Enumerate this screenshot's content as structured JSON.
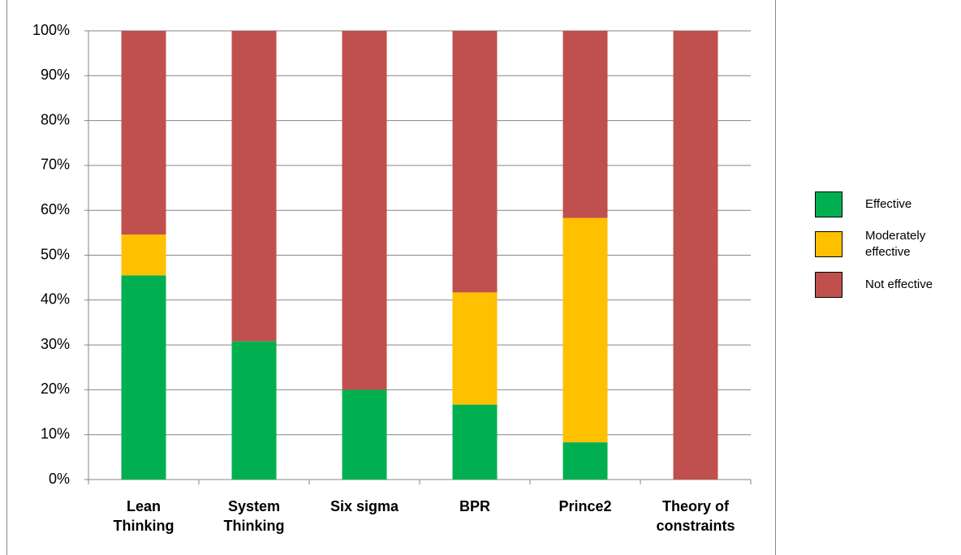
{
  "chart_data": {
    "type": "stacked_bar_100",
    "categories": [
      "Lean Thinking",
      "System Thinking",
      "Six sigma",
      "BPR",
      "Prince2",
      "Theory of constraints"
    ],
    "series": [
      {
        "name": "Effective",
        "color": "#00b050",
        "values": [
          45.5,
          30.8,
          20,
          16.7,
          8.3,
          0
        ]
      },
      {
        "name": "Moderately effective",
        "color": "#ffc000",
        "values": [
          9.1,
          0,
          0,
          25,
          50,
          0
        ]
      },
      {
        "name": "Not effective",
        "color": "#c0504d",
        "values": [
          45.4,
          69.2,
          80,
          58.3,
          41.7,
          100
        ]
      }
    ],
    "ylim": [
      0,
      100
    ],
    "yticks": [
      {
        "value": 0,
        "label": "0%"
      },
      {
        "value": 10,
        "label": "10%"
      },
      {
        "value": 20,
        "label": "20%"
      },
      {
        "value": 30,
        "label": "30%"
      },
      {
        "value": 40,
        "label": "40%"
      },
      {
        "value": 50,
        "label": "50%"
      },
      {
        "value": 60,
        "label": "60%"
      },
      {
        "value": 70,
        "label": "70%"
      },
      {
        "value": 80,
        "label": "80%"
      },
      {
        "value": 90,
        "label": "90%"
      },
      {
        "value": 100,
        "label": "100%"
      }
    ],
    "grid": true,
    "legend": "right"
  }
}
